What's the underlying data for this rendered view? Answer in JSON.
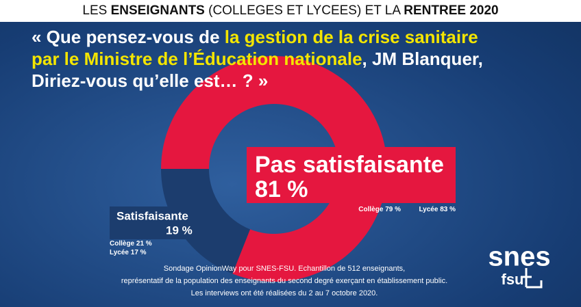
{
  "header": {
    "parts": [
      "LES ",
      "ENSEIGNANTS",
      " (COLLEGES ET LYCEES) ET LA ",
      "RENTREE 2020"
    ]
  },
  "question": {
    "parts": [
      "« Que pensez-vous de ",
      "la gestion de la crise sanitaire",
      "par le Ministre de l’Éducation nationale",
      ", JM Blanquer,",
      "Diriez-vous qu’elle est… ? »"
    ]
  },
  "chart_data": {
    "type": "donut",
    "categories": [
      "Pas satisfaisante",
      "Satisfaisante"
    ],
    "values": [
      81,
      19
    ],
    "value_labels": [
      "81 %",
      "19 %"
    ],
    "colors": [
      "#e5173f",
      "#1c3d6e"
    ],
    "details": [
      [
        {
          "name": "Collège",
          "value": 79,
          "value_label": "79 %"
        },
        {
          "name": "Lycée",
          "value": 83,
          "value_label": "83 %"
        }
      ],
      [
        {
          "name": "Collège",
          "value": 21,
          "value_label": "21 %"
        },
        {
          "name": "Lycée",
          "value": 17,
          "value_label": "17 %"
        }
      ]
    ]
  },
  "footnote": [
    "Sondage OpinionWay pour SNES-FSU. Echantillon de 512 enseignants,",
    "représentatif de la population des enseignants du second degré exerçant en établissement public.",
    "Les interviews ont été réalisées du 2 au 7 octobre 2020."
  ],
  "logo": {
    "main": "snes",
    "sub": "fsu"
  }
}
